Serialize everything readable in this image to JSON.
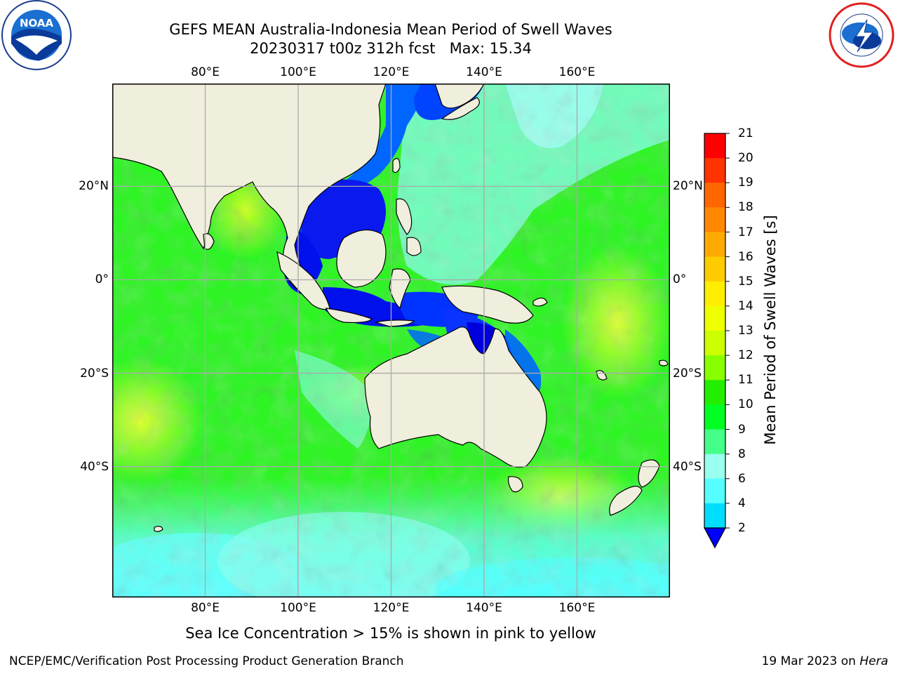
{
  "title": {
    "line1": "GEFS MEAN Australia-Indonesia Mean Period of Swell Waves",
    "line2": "20230317 t00z 312h fcst   Max: 15.34"
  },
  "map": {
    "lon_range": [
      60,
      180
    ],
    "lat_range": [
      -68,
      42
    ],
    "lon_ticks": [
      "80°E",
      "100°E",
      "120°E",
      "140°E",
      "160°E"
    ],
    "lat_ticks": [
      "20°N",
      "0°",
      "20°S",
      "40°S"
    ],
    "gridlines": true
  },
  "colorbar": {
    "title": "Mean Period of Swell Waves [s]",
    "levels": [
      "21",
      "20",
      "19",
      "18",
      "17",
      "16",
      "15",
      "14",
      "13",
      "12",
      "11",
      "10",
      "9",
      "8",
      "6",
      "4",
      "2"
    ],
    "colors": [
      "#ff0000",
      "#ff3300",
      "#ff6600",
      "#ff8800",
      "#ffaa00",
      "#ffcc00",
      "#ffee00",
      "#eeff00",
      "#ccff00",
      "#88ff00",
      "#22ee00",
      "#00ff22",
      "#44ff88",
      "#99ffee",
      "#55ffff",
      "#00ddff",
      "#0077ff"
    ],
    "extend_color": "#0000ff"
  },
  "footer": {
    "note": "Sea Ice Concentration > 15% is shown in pink to yellow",
    "left": "NCEP/EMC/Verification Post Processing Product Generation Branch",
    "right_date": "19 Mar 2023 on ",
    "right_host": "Hera"
  },
  "logos": {
    "left_icon": "noaa-logo-icon",
    "right_icon": "nws-logo-icon"
  }
}
